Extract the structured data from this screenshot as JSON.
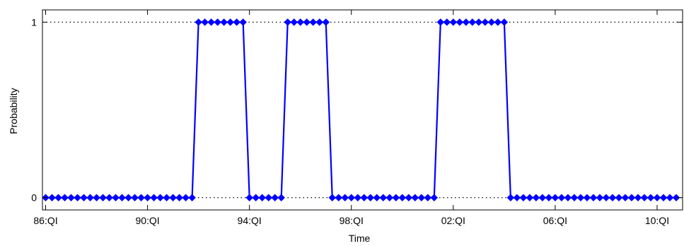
{
  "chart_data": {
    "type": "line",
    "xlabel": "Time",
    "ylabel": "Probability",
    "x_tick_labels": [
      "86:QI",
      "90:QI",
      "94:QI",
      "98:QI",
      "02:QI",
      "06:QI",
      "10:QI"
    ],
    "y_tick_labels": [
      "0",
      "1"
    ],
    "x_ticks_quarter_index": [
      0,
      16,
      32,
      48,
      64,
      80,
      96
    ],
    "xlim_quarter_index": [
      -0.5,
      100
    ],
    "ylim": [
      -0.07,
      1.07
    ],
    "y_gridlines": [
      0,
      1
    ],
    "grid_style": "dotted",
    "series": [
      {
        "color": "#0000ff",
        "marker": "diamond",
        "segments": [
          {
            "from": 0,
            "to": 23,
            "value": 0
          },
          {
            "from": 24,
            "to": 31,
            "value": 1
          },
          {
            "from": 32,
            "to": 37,
            "value": 0
          },
          {
            "from": 38,
            "to": 44,
            "value": 1
          },
          {
            "from": 45,
            "to": 61,
            "value": 0
          },
          {
            "from": 62,
            "to": 72,
            "value": 1
          },
          {
            "from": 73,
            "to": 99,
            "value": 0
          }
        ]
      }
    ]
  }
}
